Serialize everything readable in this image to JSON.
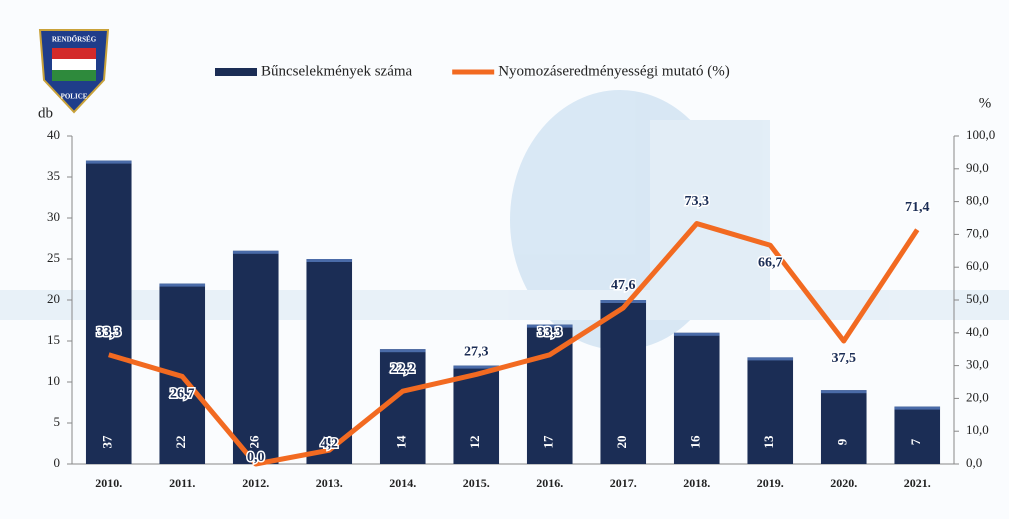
{
  "logo": {
    "top": "RENDŐRSÉG",
    "bottom": "POLICE"
  },
  "chart_data": {
    "type": "bar-line",
    "y_label": "db",
    "y2_label": "%",
    "categories": [
      "2010.",
      "2011.",
      "2012.",
      "2013.",
      "2014.",
      "2015.",
      "2016.",
      "2017.",
      "2018.",
      "2019.",
      "2020.",
      "2021."
    ],
    "series": [
      {
        "name": "Bűncselekmények száma",
        "type": "bar",
        "color": "#1b2d55",
        "values": [
          37,
          22,
          26,
          25,
          14,
          12,
          17,
          20,
          16,
          13,
          9,
          7
        ]
      },
      {
        "name": "Nyomozáseredményességi mutató (%)",
        "type": "line",
        "axis": "y2",
        "color": "#f26a21",
        "values": [
          33.3,
          26.7,
          0.0,
          4.2,
          22.2,
          27.3,
          33.3,
          47.6,
          73.3,
          66.7,
          37.5,
          71.4
        ],
        "value_labels": [
          "33,3",
          "26,7",
          "0,0",
          "4,2",
          "22,2",
          "27,3",
          "33,3",
          "47,6",
          "73,3",
          "66,7",
          "37,5",
          "71,4"
        ]
      }
    ],
    "ylim": [
      0,
      40
    ],
    "yticks": [
      0,
      5,
      10,
      15,
      20,
      25,
      30,
      35,
      40
    ],
    "y2lim": [
      0,
      100
    ],
    "y2ticks": [
      {
        "value": 0,
        "label": "0,0"
      },
      {
        "value": 10,
        "label": "10,0"
      },
      {
        "value": 20,
        "label": "20,0"
      },
      {
        "value": 30,
        "label": "30,0"
      },
      {
        "value": 40,
        "label": "40,0"
      },
      {
        "value": 50,
        "label": "50,0"
      },
      {
        "value": 60,
        "label": "60,0"
      },
      {
        "value": 70,
        "label": "70,0"
      },
      {
        "value": 80,
        "label": "80,0"
      },
      {
        "value": 90,
        "label": "90,0"
      },
      {
        "value": 100,
        "label": "100,0"
      }
    ]
  }
}
